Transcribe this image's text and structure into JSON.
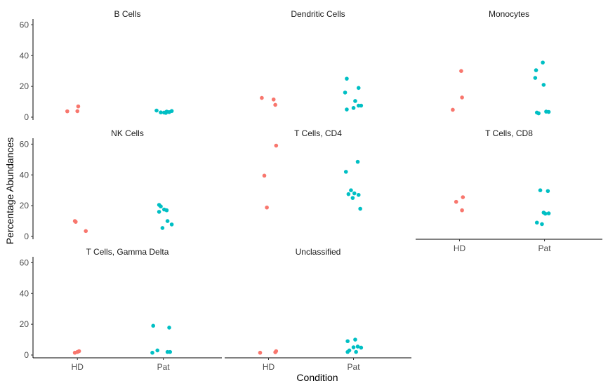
{
  "chart_data": {
    "type": "scatter",
    "subtype": "faceted jitter strip plot",
    "xlabel": "Condition",
    "ylabel": "Percentage Abundances",
    "categories": [
      "HD",
      "Pat"
    ],
    "ylim": [
      0,
      62
    ],
    "yticks": [
      0,
      20,
      40,
      60
    ],
    "grid": false,
    "legend": "none",
    "colors": {
      "HD": "#F8766D",
      "Pat": "#00BFC4"
    },
    "facets": [
      {
        "title": "B Cells",
        "points": [
          {
            "group": "HD",
            "jitter": -0.12,
            "y": 3.8
          },
          {
            "group": "HD",
            "jitter": 0.0,
            "y": 3.9
          },
          {
            "group": "HD",
            "jitter": 0.01,
            "y": 7.0
          },
          {
            "group": "Pat",
            "jitter": -0.08,
            "y": 4.3
          },
          {
            "group": "Pat",
            "jitter": -0.03,
            "y": 3.1
          },
          {
            "group": "Pat",
            "jitter": 0.01,
            "y": 3.0
          },
          {
            "group": "Pat",
            "jitter": 0.04,
            "y": 3.6
          },
          {
            "group": "Pat",
            "jitter": 0.07,
            "y": 3.3
          },
          {
            "group": "Pat",
            "jitter": 0.1,
            "y": 4.0
          },
          {
            "group": "Pat",
            "jitter": 0.03,
            "y": 2.8
          }
        ]
      },
      {
        "title": "Dendritic Cells",
        "points": [
          {
            "group": "HD",
            "jitter": -0.08,
            "y": 12.5
          },
          {
            "group": "HD",
            "jitter": 0.06,
            "y": 11.5
          },
          {
            "group": "HD",
            "jitter": 0.08,
            "y": 8.0
          },
          {
            "group": "Pat",
            "jitter": -0.08,
            "y": 25.0
          },
          {
            "group": "Pat",
            "jitter": -0.1,
            "y": 16.0
          },
          {
            "group": "Pat",
            "jitter": 0.06,
            "y": 19.0
          },
          {
            "group": "Pat",
            "jitter": 0.02,
            "y": 10.5
          },
          {
            "group": "Pat",
            "jitter": 0.06,
            "y": 7.5
          },
          {
            "group": "Pat",
            "jitter": 0.09,
            "y": 7.5
          },
          {
            "group": "Pat",
            "jitter": -0.08,
            "y": 5.0
          },
          {
            "group": "Pat",
            "jitter": 0.0,
            "y": 6.0
          }
        ]
      },
      {
        "title": "Monocytes",
        "points": [
          {
            "group": "HD",
            "jitter": 0.02,
            "y": 30.0
          },
          {
            "group": "HD",
            "jitter": 0.03,
            "y": 12.8
          },
          {
            "group": "HD",
            "jitter": -0.08,
            "y": 4.8
          },
          {
            "group": "Pat",
            "jitter": -0.1,
            "y": 30.5
          },
          {
            "group": "Pat",
            "jitter": -0.02,
            "y": 35.5
          },
          {
            "group": "Pat",
            "jitter": -0.11,
            "y": 25.5
          },
          {
            "group": "Pat",
            "jitter": -0.01,
            "y": 21.0
          },
          {
            "group": "Pat",
            "jitter": -0.09,
            "y": 3.0
          },
          {
            "group": "Pat",
            "jitter": -0.07,
            "y": 2.5
          },
          {
            "group": "Pat",
            "jitter": 0.02,
            "y": 3.6
          },
          {
            "group": "Pat",
            "jitter": 0.05,
            "y": 3.4
          }
        ]
      },
      {
        "title": "NK Cells",
        "points": [
          {
            "group": "HD",
            "jitter": -0.02,
            "y": 9.5
          },
          {
            "group": "HD",
            "jitter": -0.03,
            "y": 10.0
          },
          {
            "group": "HD",
            "jitter": 0.1,
            "y": 3.5
          },
          {
            "group": "Pat",
            "jitter": -0.05,
            "y": 20.5
          },
          {
            "group": "Pat",
            "jitter": -0.03,
            "y": 19.5
          },
          {
            "group": "Pat",
            "jitter": -0.05,
            "y": 16.0
          },
          {
            "group": "Pat",
            "jitter": 0.01,
            "y": 17.5
          },
          {
            "group": "Pat",
            "jitter": 0.04,
            "y": 17.0
          },
          {
            "group": "Pat",
            "jitter": 0.05,
            "y": 10.0
          },
          {
            "group": "Pat",
            "jitter": 0.1,
            "y": 7.8
          },
          {
            "group": "Pat",
            "jitter": -0.01,
            "y": 5.5
          }
        ]
      },
      {
        "title": "T Cells, CD4",
        "points": [
          {
            "group": "HD",
            "jitter": 0.09,
            "y": 59.0
          },
          {
            "group": "HD",
            "jitter": -0.05,
            "y": 39.5
          },
          {
            "group": "HD",
            "jitter": -0.02,
            "y": 18.8
          },
          {
            "group": "Pat",
            "jitter": 0.05,
            "y": 48.5
          },
          {
            "group": "Pat",
            "jitter": -0.09,
            "y": 42.0
          },
          {
            "group": "Pat",
            "jitter": -0.03,
            "y": 30.0
          },
          {
            "group": "Pat",
            "jitter": -0.06,
            "y": 27.5
          },
          {
            "group": "Pat",
            "jitter": 0.01,
            "y": 28.0
          },
          {
            "group": "Pat",
            "jitter": 0.06,
            "y": 27.0
          },
          {
            "group": "Pat",
            "jitter": -0.01,
            "y": 25.0
          },
          {
            "group": "Pat",
            "jitter": 0.08,
            "y": 18.0
          }
        ]
      },
      {
        "title": "T Cells, CD8",
        "points": [
          {
            "group": "HD",
            "jitter": 0.04,
            "y": 25.5
          },
          {
            "group": "HD",
            "jitter": -0.04,
            "y": 22.5
          },
          {
            "group": "HD",
            "jitter": 0.03,
            "y": 17.0
          },
          {
            "group": "Pat",
            "jitter": -0.05,
            "y": 30.0
          },
          {
            "group": "Pat",
            "jitter": 0.04,
            "y": 29.5
          },
          {
            "group": "Pat",
            "jitter": -0.01,
            "y": 15.5
          },
          {
            "group": "Pat",
            "jitter": 0.05,
            "y": 15.0
          },
          {
            "group": "Pat",
            "jitter": 0.01,
            "y": 14.8
          },
          {
            "group": "Pat",
            "jitter": -0.09,
            "y": 9.0
          },
          {
            "group": "Pat",
            "jitter": -0.03,
            "y": 8.0
          }
        ]
      },
      {
        "title": "T Cells, Gamma Delta",
        "points": [
          {
            "group": "HD",
            "jitter": -0.03,
            "y": 1.5
          },
          {
            "group": "HD",
            "jitter": 0.0,
            "y": 2.0
          },
          {
            "group": "HD",
            "jitter": 0.02,
            "y": 2.5
          },
          {
            "group": "Pat",
            "jitter": -0.12,
            "y": 19.0
          },
          {
            "group": "Pat",
            "jitter": 0.07,
            "y": 17.8
          },
          {
            "group": "Pat",
            "jitter": -0.07,
            "y": 3.0
          },
          {
            "group": "Pat",
            "jitter": -0.13,
            "y": 1.5
          },
          {
            "group": "Pat",
            "jitter": 0.05,
            "y": 2.0
          },
          {
            "group": "Pat",
            "jitter": 0.08,
            "y": 2.0
          }
        ]
      },
      {
        "title": "Unclassified",
        "points": [
          {
            "group": "HD",
            "jitter": -0.1,
            "y": 1.5
          },
          {
            "group": "HD",
            "jitter": 0.08,
            "y": 1.8
          },
          {
            "group": "HD",
            "jitter": 0.09,
            "y": 2.5
          },
          {
            "group": "Pat",
            "jitter": -0.07,
            "y": 9.0
          },
          {
            "group": "Pat",
            "jitter": 0.02,
            "y": 10.0
          },
          {
            "group": "Pat",
            "jitter": 0.0,
            "y": 5.0
          },
          {
            "group": "Pat",
            "jitter": 0.05,
            "y": 5.5
          },
          {
            "group": "Pat",
            "jitter": 0.09,
            "y": 4.8
          },
          {
            "group": "Pat",
            "jitter": -0.05,
            "y": 3.0
          },
          {
            "group": "Pat",
            "jitter": -0.07,
            "y": 2.0
          },
          {
            "group": "Pat",
            "jitter": 0.03,
            "y": 2.0
          }
        ]
      }
    ]
  }
}
